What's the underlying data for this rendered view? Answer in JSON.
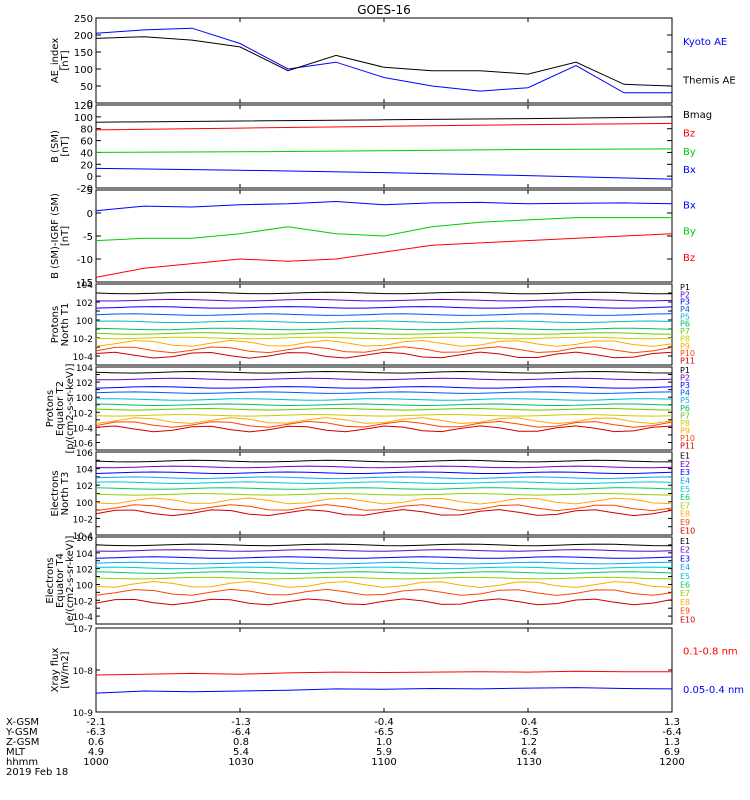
{
  "title": "GOES-16",
  "date_label": "2019 Feb 18",
  "colors": {
    "black": "#000000",
    "blue": "#0000ff",
    "red": "#ff0000",
    "green": "#00cc00"
  },
  "ephemeris": {
    "rows": [
      {
        "label": "X-GSM",
        "values": [
          "-2.1",
          "-1.3",
          "-0.4",
          "0.4",
          "1.3"
        ]
      },
      {
        "label": "Y-GSM",
        "values": [
          "-6.3",
          "-6.4",
          "-6.5",
          "-6.5",
          "-6.4"
        ]
      },
      {
        "label": "Z-GSM",
        "values": [
          "0.6",
          "0.8",
          "1.0",
          "1.2",
          "1.3"
        ]
      },
      {
        "label": "MLT",
        "values": [
          "4.9",
          "5.4",
          "5.9",
          "6.4",
          "6.9"
        ]
      },
      {
        "label": "hhmm",
        "values": [
          "1000",
          "1030",
          "1100",
          "1130",
          "1200"
        ]
      }
    ]
  },
  "chart_data": [
    {
      "type": "line",
      "ylabel": [
        "AE_index",
        "[nT]"
      ],
      "ylim": [
        0,
        250
      ],
      "yscale": "linear",
      "yticks": [
        "0",
        "50",
        "100",
        "150",
        "200",
        "250"
      ],
      "x": [
        "1000",
        "1010",
        "1020",
        "1030",
        "1040",
        "1050",
        "1100",
        "1110",
        "1120",
        "1130",
        "1140",
        "1150",
        "1200"
      ],
      "series": [
        {
          "name": "Kyoto AE",
          "color": "#0000ff",
          "values": [
            205,
            215,
            220,
            175,
            100,
            120,
            75,
            50,
            35,
            45,
            110,
            30,
            30
          ]
        },
        {
          "name": "Themis AE",
          "color": "#000000",
          "values": [
            190,
            195,
            185,
            165,
            95,
            140,
            105,
            95,
            95,
            85,
            120,
            55,
            50
          ]
        }
      ]
    },
    {
      "type": "line",
      "ylabel": [
        "B (SM)",
        "[nT]"
      ],
      "ylim": [
        -20,
        120
      ],
      "yscale": "linear",
      "yticks": [
        "-20",
        "0",
        "20",
        "40",
        "60",
        "80",
        "100",
        "120"
      ],
      "x": [
        "1000",
        "1030",
        "1100",
        "1130",
        "1200"
      ],
      "series": [
        {
          "name": "Bmag",
          "color": "#000000",
          "values": [
            91,
            93,
            95,
            97,
            100
          ]
        },
        {
          "name": "Bz",
          "color": "#ff0000",
          "values": [
            78,
            81,
            84,
            87,
            89
          ]
        },
        {
          "name": "By",
          "color": "#00cc00",
          "values": [
            40,
            41,
            43,
            45,
            46
          ]
        },
        {
          "name": "Bx",
          "color": "#0000ff",
          "values": [
            13,
            10,
            6,
            1,
            -5
          ]
        }
      ]
    },
    {
      "type": "line",
      "ylabel": [
        "B (SM)-IGRF (SM)",
        "[nT]"
      ],
      "ylim": [
        -15,
        5
      ],
      "yscale": "linear",
      "yticks": [
        "-15",
        "-10",
        "-5",
        "0",
        "5"
      ],
      "x": [
        "1000",
        "1010",
        "1020",
        "1030",
        "1040",
        "1050",
        "1100",
        "1110",
        "1120",
        "1130",
        "1140",
        "1150",
        "1200"
      ],
      "series": [
        {
          "name": "Bx",
          "color": "#0000ff",
          "values": [
            0.5,
            1.5,
            1.3,
            1.8,
            2.0,
            2.5,
            1.8,
            2.2,
            2.3,
            2.0,
            2.1,
            2.2,
            2.0
          ]
        },
        {
          "name": "By",
          "color": "#00cc00",
          "values": [
            -6,
            -5.5,
            -5.5,
            -4.5,
            -3,
            -4.5,
            -5,
            -3,
            -2,
            -1.5,
            -1,
            -1,
            -1
          ]
        },
        {
          "name": "Bz",
          "color": "#ff0000",
          "values": [
            -14,
            -12,
            -11,
            -10,
            -10.5,
            -10,
            -8.5,
            -7,
            -6.5,
            -6,
            -5.5,
            -5,
            -4.5
          ]
        }
      ]
    },
    {
      "type": "line",
      "ylabel": [
        "Protons",
        "North T1"
      ],
      "ylim": [
        -5,
        4
      ],
      "yscale": "log",
      "yticks": [
        "10-4",
        "10-2",
        "100",
        "102",
        "104"
      ],
      "channels": [
        "P1",
        "P2",
        "P3",
        "P4",
        "P5",
        "P6",
        "P7",
        "P8",
        "P9",
        "P10",
        "P11"
      ],
      "channel_colors": [
        "#000000",
        "#6600cc",
        "#0000ff",
        "#0055ff",
        "#00bbcc",
        "#00bb66",
        "#66cc00",
        "#cccc00",
        "#ffaa00",
        "#ff4400",
        "#cc0000"
      ],
      "levels": [
        3.0,
        2.2,
        1.4,
        0.6,
        -0.2,
        -1.0,
        -1.5,
        -2.0,
        -2.6,
        -3.3,
        -3.9
      ]
    },
    {
      "type": "line",
      "ylabel": [
        "Protons",
        "Equator T2",
        "[p/(cm2-s-sr-keV)]"
      ],
      "ylim": [
        -7,
        4
      ],
      "yscale": "log",
      "yticks": [
        "10-6",
        "10-4",
        "10-2",
        "100",
        "102",
        "104"
      ],
      "channels": [
        "P1",
        "P2",
        "P3",
        "P4",
        "P5",
        "P6",
        "P7",
        "P8",
        "P9",
        "P10",
        "P11"
      ],
      "channel_colors": [
        "#000000",
        "#6600cc",
        "#0000ff",
        "#0055ff",
        "#00bbcc",
        "#00bb66",
        "#66cc00",
        "#cccc00",
        "#ffaa00",
        "#ff4400",
        "#cc0000"
      ],
      "levels": [
        3.3,
        2.4,
        1.3,
        0.6,
        -0.3,
        -1.0,
        -1.6,
        -2.4,
        -3.1,
        -3.6,
        -4.2
      ]
    },
    {
      "type": "line",
      "ylabel": [
        "Electrons",
        "North T3"
      ],
      "ylim": [
        -4,
        6
      ],
      "yscale": "log",
      "yticks": [
        "10-4",
        "10-2",
        "100",
        "102",
        "104",
        "106"
      ],
      "channels": [
        "E1",
        "E2",
        "E3",
        "E4",
        "E5",
        "E6",
        "E7",
        "E8",
        "E9",
        "E10"
      ],
      "channel_colors": [
        "#000000",
        "#6600cc",
        "#0000ff",
        "#00aaff",
        "#00cccc",
        "#00cc66",
        "#99cc00",
        "#ffaa00",
        "#ff4400",
        "#cc0000"
      ],
      "levels": [
        4.9,
        4.2,
        3.5,
        2.9,
        2.3,
        1.6,
        0.9,
        0.1,
        -0.7,
        -1.3
      ]
    },
    {
      "type": "line",
      "ylabel": [
        "Electrons",
        "Equator T4",
        "[e/(cm2-s-sr-keV)]"
      ],
      "ylim": [
        -5,
        6
      ],
      "yscale": "log",
      "yticks": [
        "10-4",
        "10-2",
        "100",
        "102",
        "104",
        "106"
      ],
      "channels": [
        "E1",
        "E2",
        "E3",
        "E4",
        "E5",
        "E6",
        "E7",
        "E8",
        "E9",
        "E10"
      ],
      "channel_colors": [
        "#000000",
        "#6600cc",
        "#0000ff",
        "#00aaff",
        "#00cccc",
        "#00cc66",
        "#99cc00",
        "#ffaa00",
        "#ff4400",
        "#cc0000"
      ],
      "levels": [
        5.0,
        4.3,
        3.4,
        2.7,
        2.1,
        1.5,
        0.8,
        0.0,
        -1.0,
        -2.2
      ]
    },
    {
      "type": "line",
      "ylabel": [
        "Xray flux",
        "[W/m2]"
      ],
      "ylim": [
        -9,
        -7
      ],
      "yscale": "log",
      "yticks": [
        "10-9",
        "10-8",
        "10-7"
      ],
      "x": [
        "1000",
        "1010",
        "1020",
        "1030",
        "1040",
        "1050",
        "1100",
        "1110",
        "1120",
        "1130",
        "1140",
        "1150",
        "1200"
      ],
      "series": [
        {
          "name": "0.1-0.8 nm",
          "color": "#ff0000",
          "values": [
            -8.12,
            -8.1,
            -8.08,
            -8.1,
            -8.07,
            -8.05,
            -8.06,
            -8.05,
            -8.04,
            -8.05,
            -8.03,
            -8.04,
            -8.04
          ]
        },
        {
          "name": "0.05-0.4 nm",
          "color": "#0000ff",
          "values": [
            -8.55,
            -8.5,
            -8.52,
            -8.5,
            -8.48,
            -8.45,
            -8.46,
            -8.44,
            -8.45,
            -8.43,
            -8.42,
            -8.44,
            -8.45
          ]
        }
      ]
    }
  ]
}
